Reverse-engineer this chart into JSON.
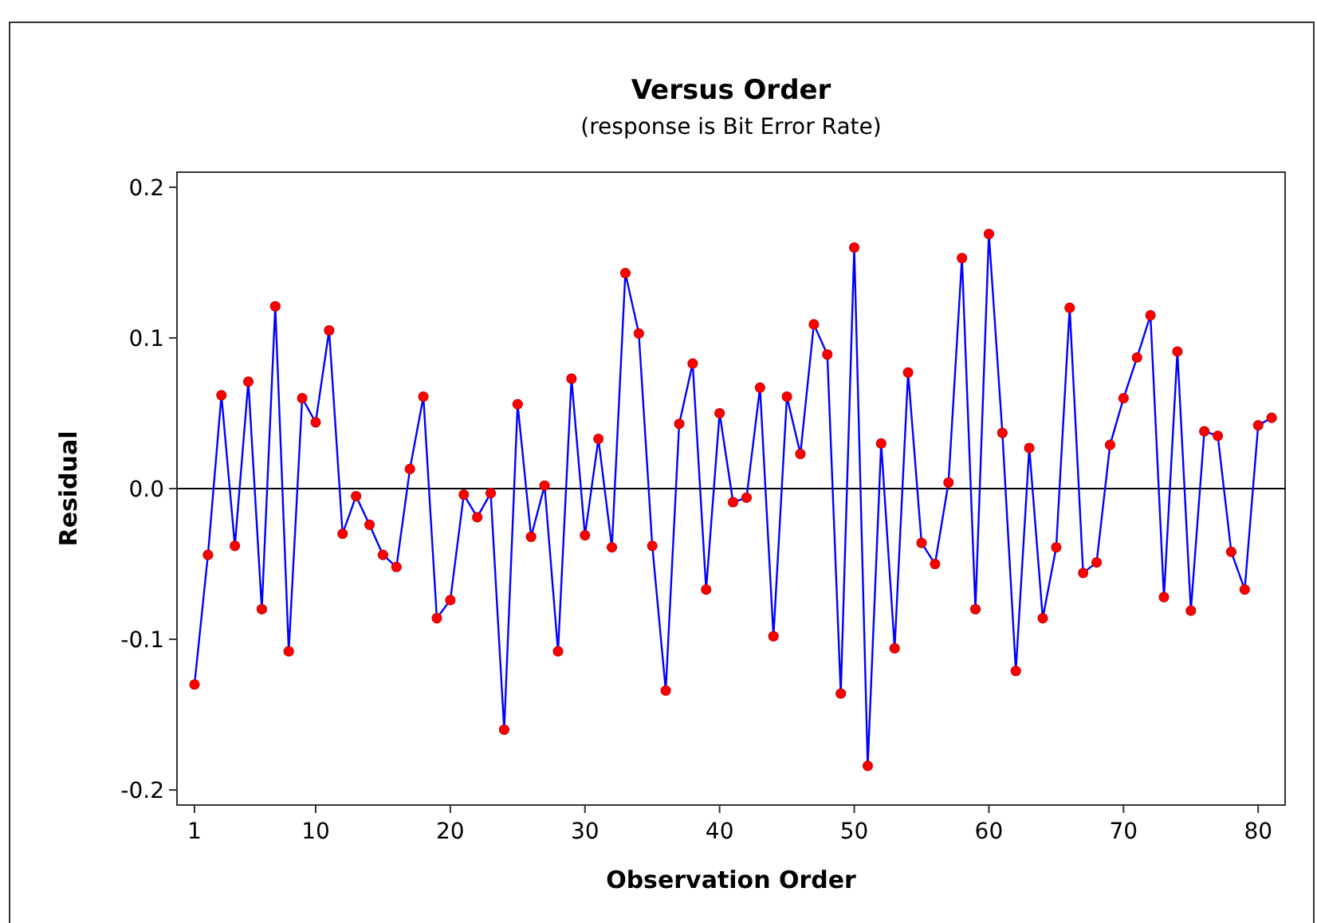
{
  "chart_data": {
    "type": "line",
    "title": "Versus Order",
    "subtitle": "(response is Bit Error Rate)",
    "xlabel": "Observation Order",
    "ylabel": "Residual",
    "x": [
      1,
      2,
      3,
      4,
      5,
      6,
      7,
      8,
      9,
      10,
      11,
      12,
      13,
      14,
      15,
      16,
      17,
      18,
      19,
      20,
      21,
      22,
      23,
      24,
      25,
      26,
      27,
      28,
      29,
      30,
      31,
      32,
      33,
      34,
      35,
      36,
      37,
      38,
      39,
      40,
      41,
      42,
      43,
      44,
      45,
      46,
      47,
      48,
      49,
      50,
      51,
      52,
      53,
      54,
      55,
      56,
      57,
      58,
      59,
      60,
      61,
      62,
      63,
      64,
      65,
      66,
      67,
      68,
      69,
      70,
      71,
      72,
      73,
      74,
      75,
      76,
      77,
      78,
      79,
      80,
      81
    ],
    "series": [
      {
        "color": "#0000ff",
        "marker": "circle",
        "line_style": "solid",
        "colors": [
          "#ff0000",
          "#ff0000",
          "#ff0000",
          "#ff0000",
          "#ff0000",
          "#ff0000",
          "#ff0000",
          "#ff0000",
          "#ff0000",
          "#ff0000",
          "#ff0000",
          "#ff0000",
          "#ff0000",
          "#ff0000",
          "#ff0000",
          "#ff0000",
          "#ff0000",
          "#ff0000",
          "#ff0000",
          "#ff0000",
          "#ff0000",
          "#ff0000",
          "#ff0000",
          "#ff0000",
          "#ff0000",
          "#ff0000",
          "#ff0000",
          "#ff0000",
          "#ff0000",
          "#ff0000",
          "#ff0000",
          "#ff0000",
          "#ff0000",
          "#ff0000",
          "#ff0000",
          "#ff0000",
          "#ff0000",
          "#ff0000",
          "#ff0000",
          "#ff0000",
          "#ff0000",
          "#ff0000",
          "#ff0000",
          "#ff0000",
          "#ff0000",
          "#ff0000",
          "#ff0000",
          "#ff0000",
          "#ff0000",
          "#ff0000",
          "#ff0000",
          "#ff0000",
          "#ff0000",
          "#ff0000",
          "#ff0000",
          "#ff0000",
          "#ff0000",
          "#ff0000",
          "#ff0000",
          "#ff0000",
          "#ff0000",
          "#ff0000",
          "#ff0000",
          "#ff0000",
          "#ff0000",
          "#ff0000",
          "#ff0000",
          "#ff0000",
          "#ff0000",
          "#ff0000",
          "#ff0000",
          "#ff0000",
          "#ff0000",
          "#ff0000",
          "#ff0000",
          "#ff0000",
          "#ff0000",
          "#ff0000",
          "#ff0000",
          "#ff0000",
          "#ff0000"
        ],
        "values": [
          -0.13,
          -0.044,
          0.062,
          -0.038,
          0.071,
          -0.08,
          0.121,
          -0.108,
          0.06,
          0.044,
          0.105,
          -0.03,
          -0.005,
          -0.024,
          -0.044,
          -0.052,
          0.013,
          0.061,
          -0.086,
          -0.074,
          -0.004,
          -0.019,
          -0.003,
          -0.16,
          0.056,
          -0.032,
          0.002,
          -0.108,
          0.073,
          -0.031,
          0.033,
          -0.039,
          0.143,
          0.103,
          -0.038,
          -0.134,
          0.043,
          0.083,
          -0.067,
          0.05,
          -0.009,
          -0.006,
          0.067,
          -0.098,
          0.061,
          0.023,
          0.109,
          0.089,
          -0.136,
          0.16,
          -0.184,
          0.03,
          -0.106,
          0.077,
          -0.036,
          -0.05,
          0.004,
          0.153,
          -0.08,
          0.169,
          0.037,
          -0.121,
          0.027,
          -0.086,
          -0.039,
          0.12,
          -0.056,
          -0.049,
          0.029,
          0.06,
          0.087,
          0.115,
          -0.072,
          0.091,
          -0.081,
          0.038,
          0.035,
          -0.042,
          -0.067,
          0.042,
          0.047
        ]
      }
    ],
    "xlim": [
      -0.3,
      82
    ],
    "xticks": [
      1,
      10,
      20,
      30,
      40,
      50,
      60,
      70,
      80
    ],
    "ylim": [
      -0.21,
      0.21
    ],
    "yticks": [
      -0.2,
      -0.1,
      {
        "value": 0,
        "label": "0.0"
      },
      0.1,
      0.2
    ],
    "ref_lines": [
      {
        "axis": "y",
        "value": 0,
        "color": "#000000"
      }
    ],
    "grid": false
  }
}
